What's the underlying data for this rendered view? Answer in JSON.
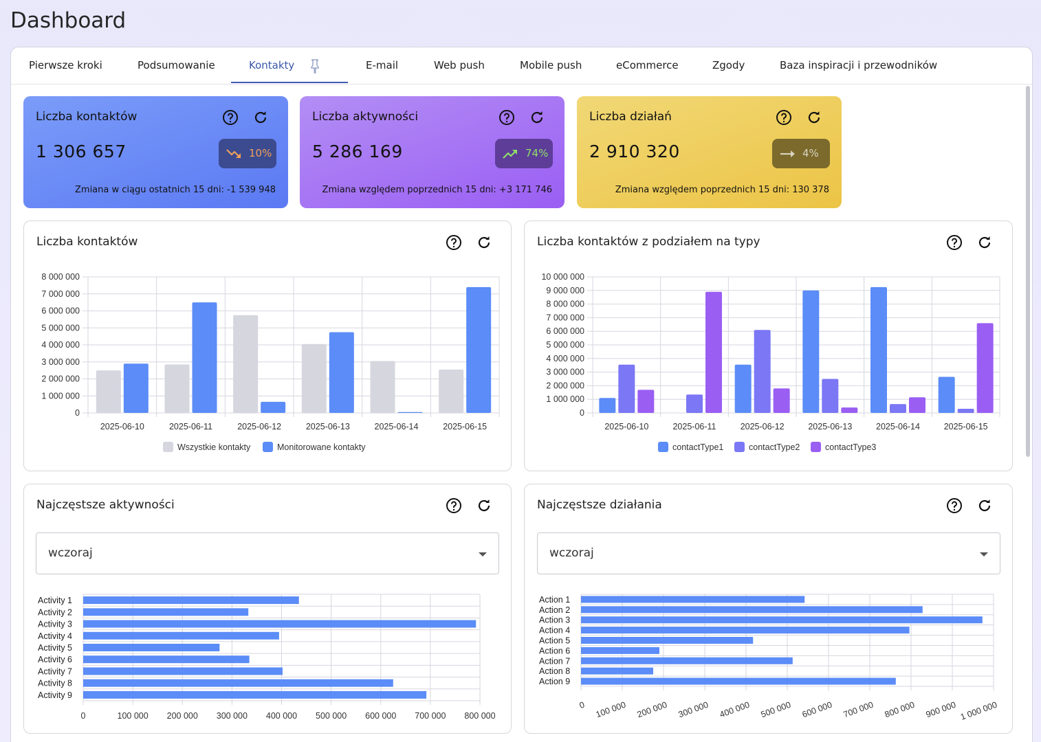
{
  "page": {
    "title": "Dashboard"
  },
  "tabs": [
    {
      "label": "Pierwsze kroki"
    },
    {
      "label": "Podsumowanie"
    },
    {
      "label": "Kontakty",
      "active": true
    },
    {
      "label": "E-mail"
    },
    {
      "label": "Web push"
    },
    {
      "label": "Mobile push"
    },
    {
      "label": "eCommerce"
    },
    {
      "label": "Zgody"
    },
    {
      "label": "Baza inspiracji i przewodników"
    }
  ],
  "kpis": [
    {
      "title": "Liczba kontaktów",
      "value": "1 306 657",
      "trend": "down",
      "trend_icon": "trending-down-icon",
      "pct": "10%",
      "change": "Zmiana w ciągu ostatnich 15 dni: -1 539 948"
    },
    {
      "title": "Liczba aktywności",
      "value": "5 286 169",
      "trend": "up",
      "trend_icon": "trending-up-icon",
      "pct": "74%",
      "change": "Zmiana względem poprzednich 15 dni: +3 171 746"
    },
    {
      "title": "Liczba działań",
      "value": "2 910 320",
      "trend": "flat",
      "trend_icon": "trending-flat-icon",
      "pct": "4%",
      "change": "Zmiana względem poprzednich 15 dni: 130 378"
    }
  ],
  "cards": {
    "contacts": {
      "title": "Liczba kontaktów"
    },
    "contact_types": {
      "title": "Liczba kontaktów z podziałem na typy"
    },
    "top_activities": {
      "title": "Najczęstsze aktywności",
      "select_value": "wczoraj"
    },
    "top_actions": {
      "title": "Najczęstsze działania",
      "select_value": "wczoraj"
    }
  },
  "colors": {
    "gray_series": "#d5d6de",
    "blue_series": "#5b8cf7",
    "type1": "#5b8cf7",
    "type2": "#7b77f5",
    "type3": "#9a5ef3",
    "grid": "#d6d6e0"
  },
  "chart_data": [
    {
      "type": "bar",
      "title": "Liczba kontaktów",
      "categories": [
        "2025-06-10",
        "2025-06-11",
        "2025-06-12",
        "2025-06-13",
        "2025-06-14",
        "2025-06-15"
      ],
      "series": [
        {
          "name": "Wszystkie kontakty",
          "values": [
            2500000,
            2850000,
            5750000,
            4050000,
            3050000,
            2550000
          ]
        },
        {
          "name": "Monitorowane kontakty",
          "values": [
            2900000,
            6500000,
            650000,
            4750000,
            50000,
            7400000
          ]
        }
      ],
      "ylim": [
        0,
        8000000
      ],
      "yticks": [
        "0",
        "1 000 000",
        "2 000 000",
        "3 000 000",
        "4 000 000",
        "5 000 000",
        "6 000 000",
        "7 000 000",
        "8 000 000"
      ],
      "legend": "bottom",
      "grid": true
    },
    {
      "type": "bar",
      "title": "Liczba kontaktów z podziałem na typy",
      "categories": [
        "2025-06-10",
        "2025-06-11",
        "2025-06-12",
        "2025-06-13",
        "2025-06-14",
        "2025-06-15"
      ],
      "series": [
        {
          "name": "contactType1",
          "values": [
            1100000,
            0,
            3550000,
            9000000,
            9250000,
            2650000
          ]
        },
        {
          "name": "contactType2",
          "values": [
            3550000,
            1350000,
            6100000,
            2500000,
            650000,
            300000
          ]
        },
        {
          "name": "contactType3",
          "values": [
            1700000,
            8900000,
            1800000,
            400000,
            1150000,
            6600000
          ]
        }
      ],
      "ylim": [
        0,
        10000000
      ],
      "yticks": [
        "0",
        "1 000 000",
        "2 000 000",
        "3 000 000",
        "4 000 000",
        "5 000 000",
        "6 000 000",
        "7 000 000",
        "8 000 000",
        "9 000 000",
        "10 000 000"
      ],
      "legend": "bottom",
      "grid": true
    },
    {
      "type": "bar",
      "orientation": "horizontal",
      "title": "Najczęstsze aktywności",
      "categories": [
        "Activity 1",
        "Activity 2",
        "Activity 3",
        "Activity 4",
        "Activity 5",
        "Activity 6",
        "Activity 7",
        "Activity 8",
        "Activity 9"
      ],
      "values": [
        435000,
        333000,
        792000,
        395000,
        275000,
        335000,
        402000,
        625000,
        692000
      ],
      "xlim": [
        0,
        800000
      ],
      "xticks": [
        "0",
        "100 000",
        "200 000",
        "300 000",
        "400 000",
        "500 000",
        "600 000",
        "700 000",
        "800 000"
      ],
      "grid": true
    },
    {
      "type": "bar",
      "orientation": "horizontal",
      "title": "Najczęstsze działania",
      "categories": [
        "Action 1",
        "Action 2",
        "Action 3",
        "Action 4",
        "Action 5",
        "Action 6",
        "Action 7",
        "Action 8",
        "Action 9"
      ],
      "values": [
        542000,
        828000,
        973000,
        796000,
        417000,
        190000,
        513000,
        175000,
        763000
      ],
      "xlim": [
        0,
        1000000
      ],
      "xticks": [
        "0",
        "100 000",
        "200 000",
        "300 000",
        "400 000",
        "500 000",
        "600 000",
        "700 000",
        "800 000",
        "900 000",
        "1 000 000"
      ],
      "grid": true
    }
  ]
}
